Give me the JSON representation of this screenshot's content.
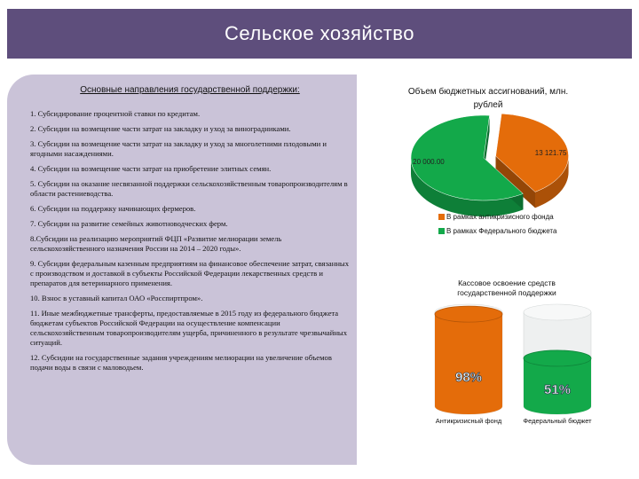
{
  "title": "Сельское хозяйство",
  "left_heading": "Основные направления государственной поддержки:",
  "items": [
    "1.  Субсидирование процентной ставки по кредитам.",
    "2.  Субсидии на возмещение части затрат на закладку и уход за виноградниками.",
    "3. Субсидии на возмещение части затрат на закладку и уход за многолетними плодовыми и ягодными насаждениями.",
    "4. Субсидии на возмещение части затрат на приобретение элитных семян.",
    "5. Субсидии на оказание несвязанной поддержки сельскохозяйственным товаропроизводителям в области растениеводства.",
    "6. Субсидии на поддержку начинающих фермеров.",
    "7. Субсидии на развитие семейных животноводческих ферм.",
    "8.Субсидии на реализацию мероприятий ФЦП «Развитие мелиорации земель сельскохозяйственного назначения России на 2014 – 2020 годы».",
    "9. Субсидии федеральным казенным предприятиям на финансовое обеспечение затрат, связанных с производством и доставкой в субъекты Российской Федерации лекарственных средств и препаратов для ветеринарного применения.",
    "10. Взнос в уставный капитал ОАО «Росспиртпром».",
    "11. Иные межбюджетные трансферты, предоставляемые в 2015 году из федерального бюджета бюджетам субъектов Российской Федерации на осуществление компенсации сельскохозяйственным товаропроизводителям ущерба, причиненного в результате чрезвычайных ситуаций.",
    "12. Субсидии на государственные задания учреждениям мелиорации на увеличение объемов подачи воды в связи с маловодьем."
  ],
  "pie": {
    "heading": "Объем бюджетных ассигнований, млн. рублей",
    "slices": [
      {
        "label": "В рамках антикризисного фонда",
        "value": 13121.75,
        "value_text": "13 121.75",
        "color": "#e46c0a"
      },
      {
        "label": "В рамках Федерального бюджета",
        "value": 20000.0,
        "value_text": "20 000.00",
        "color": "#13a94a"
      }
    ]
  },
  "cylinders": {
    "heading": "Кассовое освоение средств государственной поддержки",
    "items": [
      {
        "label": "Антикризисный фонд",
        "percent": 98,
        "percent_text": "98%",
        "color": "#e46c0a"
      },
      {
        "label": "Федеральный бюджет",
        "percent": 51,
        "percent_text": "51%",
        "color": "#13a94a"
      }
    ]
  }
}
